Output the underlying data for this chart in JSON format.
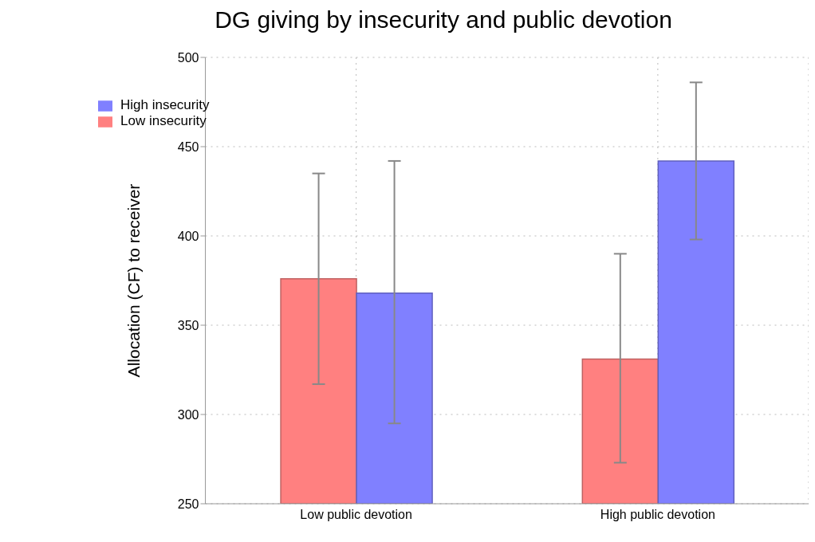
{
  "chart_data": {
    "type": "bar",
    "title": "DG giving by insecurity and public devotion",
    "ylabel": "Allocation (CF) to receiver",
    "categories": [
      "Low public devotion",
      "High public devotion"
    ],
    "series": [
      {
        "name": "Low insecurity",
        "color": "#ff8080",
        "values": [
          376,
          331
        ],
        "errors": [
          [
            317,
            435
          ],
          [
            273,
            390
          ]
        ]
      },
      {
        "name": "High insecurity",
        "color": "#8080ff",
        "values": [
          368,
          442
        ],
        "errors": [
          [
            295,
            442
          ],
          [
            398,
            486
          ]
        ]
      }
    ],
    "ylim": [
      250,
      500
    ],
    "yticks": [
      250,
      300,
      350,
      400,
      450,
      500
    ],
    "grid": true,
    "legend": "top left"
  }
}
